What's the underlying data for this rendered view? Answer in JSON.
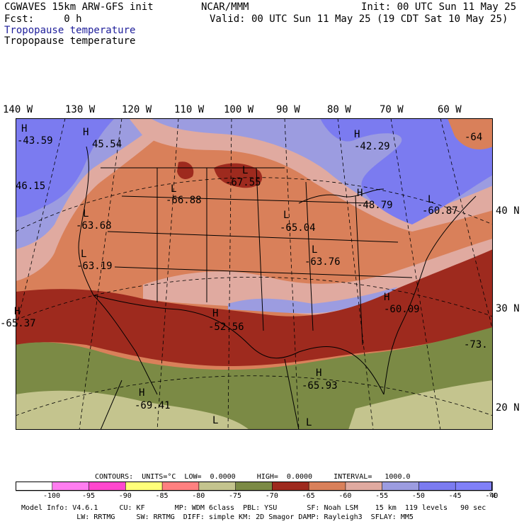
{
  "header": {
    "model": "CGWAVES 15km ARW-GFS init",
    "fcst": "Fcst:     0 h",
    "org": "NCAR/MMM",
    "init": "Init: 00 UTC Sun 11 May 25",
    "valid": "Valid: 00 UTC Sun 11 May 25 (19 CDT Sat 10 May 25)",
    "field1": "Tropopause temperature",
    "field2": "Tropopause temperature",
    "field1_color": "#1e1e9a"
  },
  "longitudes": [
    "140 W",
    "130 W",
    "120 W",
    "110 W",
    "100 W",
    "90 W",
    "80 W",
    "70 W",
    "60 W"
  ],
  "latitudes": [
    "40 N",
    "30 N",
    "20 N"
  ],
  "extrema": [
    {
      "type": "H",
      "value": "-43.59"
    },
    {
      "type": "H",
      "value": "45.54"
    },
    {
      "type": "",
      "value": "46.15"
    },
    {
      "type": "L",
      "value": "-67.55"
    },
    {
      "type": "L",
      "value": "-66.88"
    },
    {
      "type": "H",
      "value": "-42.29"
    },
    {
      "type": "H",
      "value": "-48.79"
    },
    {
      "type": "L",
      "value": "-60.87"
    },
    {
      "type": "",
      "value": "-64"
    },
    {
      "type": "L",
      "value": "-63.68"
    },
    {
      "type": "L",
      "value": "-65.04"
    },
    {
      "type": "L",
      "value": "-63.19"
    },
    {
      "type": "L",
      "value": "-63.76"
    },
    {
      "type": "H",
      "value": "-60.09"
    },
    {
      "type": "H",
      "value": "-65.37"
    },
    {
      "type": "H",
      "value": "-52.56"
    },
    {
      "type": "",
      "value": "-73."
    },
    {
      "type": "H",
      "value": "-65.93"
    },
    {
      "type": "H",
      "value": "-69.41"
    },
    {
      "type": "L",
      "value": ""
    },
    {
      "type": "L",
      "value": ""
    }
  ],
  "contours": {
    "line": "CONTOURS:  UNITS=°C  LOW=  0.0000     HIGH=  0.0000     INTERVAL=   1000.0"
  },
  "colorbar": {
    "ticks": [
      "-100",
      "-95",
      "-90",
      "-85",
      "-80",
      "-75",
      "-70",
      "-65",
      "-60",
      "-55",
      "-50",
      "-45",
      "-40"
    ],
    "unit": "°C",
    "colors": [
      "#ffffff",
      "#ff7df0",
      "#ff47ce",
      "#ffff7a",
      "#ff8080",
      "#c4c48e",
      "#7b8a45",
      "#9e2a1e",
      "#d9805a",
      "#e0aaa0",
      "#9c9ce0",
      "#7b7bf0",
      "#8080f8"
    ]
  },
  "footer": {
    "line1": "Model Info: V4.6.1     CU: KF       MP: WDM 6class  PBL: YSU       SF: Noah LSM    15 km  119 levels   90 sec",
    "line2": "             LW: RRTMG     SW: RRTMG  DIFF: simple KM: 2D Smagor DAMP: Rayleigh3  SFLAY: MM5"
  },
  "map_colors": {
    "cold_core": "#9e2a1e",
    "warm": "#d9805a",
    "pink": "#e0aaa0",
    "lavender": "#9c9ce0",
    "blue": "#7b7bf0",
    "olive": "#7b8a45",
    "khaki": "#c4c48e"
  }
}
